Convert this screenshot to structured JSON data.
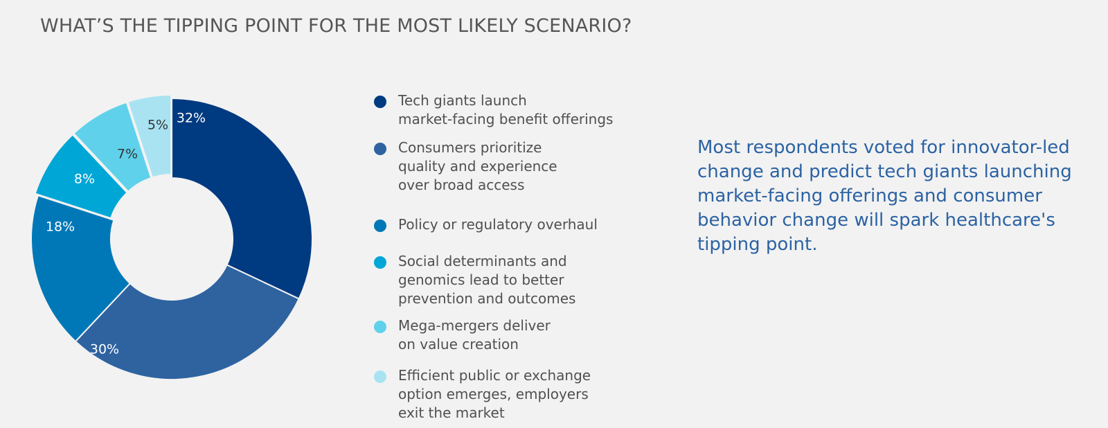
{
  "title": "WHAT’S THE TIPPING POINT FOR THE MOST LIKELY SCENARIO?",
  "callout": "Most respondents voted for innovator-led change and predict tech giants launching market-facing offerings and consumer behavior change will spark healthcare's tipping point.",
  "chart_data": {
    "type": "pie",
    "donut": true,
    "title": "WHAT’S THE TIPPING POINT FOR THE MOST LIKELY SCENARIO?",
    "legend_placement": "right",
    "categories": [
      "Tech giants launch\nmarket-facing benefit offerings",
      "Consumers prioritize\nquality and experience\nover broad access",
      "Policy or regulatory overhaul",
      "Social determinants and\ngenomics lead to better\nprevention and outcomes",
      "Mega-mergers deliver\non value creation",
      "Efficient public or exchange\noption emerges, employers\nexit the market"
    ],
    "values": [
      32,
      30,
      18,
      8,
      7,
      5
    ],
    "data_labels": [
      "32%",
      "30%",
      "18%",
      "8%",
      "7%",
      "5%"
    ],
    "colors": [
      "#003a80",
      "#2e63a0",
      "#0078b7",
      "#00a6d6",
      "#5fd1ea",
      "#a9e3f2"
    ],
    "label_colors": [
      "#ffffff",
      "#ffffff",
      "#ffffff",
      "#ffffff",
      "#333333",
      "#333333"
    ]
  }
}
